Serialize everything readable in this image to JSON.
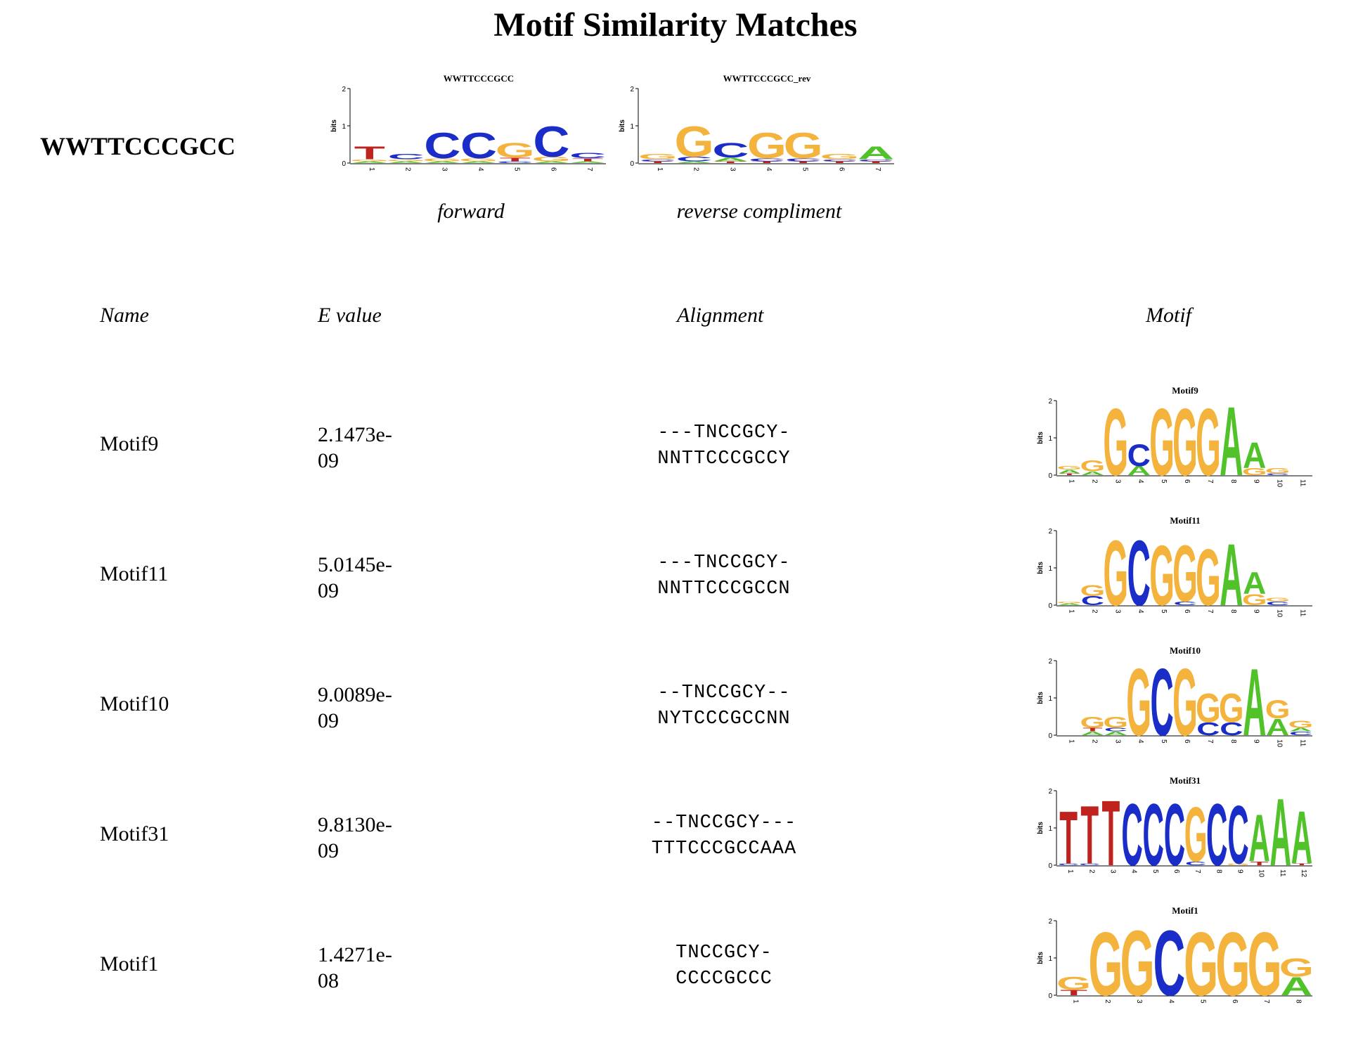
{
  "page_title": "Motif Similarity Matches",
  "query": {
    "name": "WWTTCCCGCC",
    "forward_logo": {
      "title": "WWTTCCCGCC",
      "caption": "forward",
      "ylabel": "bits",
      "yticks": [
        "0",
        "1",
        "2"
      ],
      "positions": [
        [
          [
            "A",
            0.05
          ],
          [
            "G",
            0.05
          ],
          [
            "T",
            0.35
          ]
        ],
        [
          [
            "A",
            0.05
          ],
          [
            "G",
            0.05
          ],
          [
            "C",
            0.15
          ]
        ],
        [
          [
            "A",
            0.05
          ],
          [
            "G",
            0.08
          ],
          [
            "C",
            0.7
          ]
        ],
        [
          [
            "A",
            0.05
          ],
          [
            "G",
            0.08
          ],
          [
            "C",
            0.7
          ]
        ],
        [
          [
            "C",
            0.05
          ],
          [
            "T",
            0.1
          ],
          [
            "G",
            0.4
          ]
        ],
        [
          [
            "A",
            0.05
          ],
          [
            "G",
            0.12
          ],
          [
            "C",
            0.85
          ]
        ],
        [
          [
            "A",
            0.05
          ],
          [
            "T",
            0.08
          ],
          [
            "C",
            0.15
          ]
        ]
      ]
    },
    "reverse_logo": {
      "title": "WWTTCCCGCC_rev",
      "caption": "reverse compliment",
      "ylabel": "bits",
      "yticks": [
        "0",
        "1",
        "2"
      ],
      "positions": [
        [
          [
            "T",
            0.05
          ],
          [
            "C",
            0.05
          ],
          [
            "G",
            0.15
          ]
        ],
        [
          [
            "A",
            0.05
          ],
          [
            "C",
            0.12
          ],
          [
            "G",
            0.85
          ]
        ],
        [
          [
            "T",
            0.05
          ],
          [
            "A",
            0.1
          ],
          [
            "C",
            0.4
          ]
        ],
        [
          [
            "T",
            0.05
          ],
          [
            "C",
            0.08
          ],
          [
            "G",
            0.7
          ]
        ],
        [
          [
            "T",
            0.05
          ],
          [
            "C",
            0.08
          ],
          [
            "G",
            0.7
          ]
        ],
        [
          [
            "T",
            0.05
          ],
          [
            "C",
            0.05
          ],
          [
            "G",
            0.15
          ]
        ],
        [
          [
            "T",
            0.05
          ],
          [
            "C",
            0.05
          ],
          [
            "A",
            0.35
          ]
        ]
      ]
    }
  },
  "table": {
    "headers": {
      "name": "Name",
      "evalue": "E value",
      "alignment": "Alignment",
      "motif": "Motif"
    },
    "rows": [
      {
        "name": "Motif9",
        "evalue_line1": "2.1473e-",
        "evalue_line2": "09",
        "align_top": "---TNCCGCY-",
        "align_bottom": "NNTTCCCGCCY",
        "logo": {
          "title": "Motif9",
          "ylabel": "bits",
          "yticks": [
            "0",
            "1",
            "2"
          ],
          "positions": [
            [
              [
                "T",
                0.05
              ],
              [
                "A",
                0.1
              ],
              [
                "G",
                0.1
              ]
            ],
            [
              [
                "A",
                0.1
              ],
              [
                "G",
                0.3
              ]
            ],
            [
              [
                "G",
                1.85
              ]
            ],
            [
              [
                "A",
                0.25
              ],
              [
                "C",
                0.6
              ]
            ],
            [
              [
                "G",
                1.85
              ]
            ],
            [
              [
                "G",
                1.85
              ]
            ],
            [
              [
                "G",
                1.85
              ]
            ],
            [
              [
                "A",
                1.9
              ]
            ],
            [
              [
                "G",
                0.2
              ],
              [
                "A",
                0.7
              ]
            ],
            [
              [
                "C",
                0.05
              ],
              [
                "G",
                0.15
              ]
            ],
            []
          ]
        }
      },
      {
        "name": "Motif11",
        "evalue_line1": "5.0145e-",
        "evalue_line2": "09",
        "align_top": "---TNCCGCY-",
        "align_bottom": "NNTTCCCGCCN",
        "logo": {
          "title": "Motif11",
          "ylabel": "bits",
          "yticks": [
            "0",
            "1",
            "2"
          ],
          "positions": [
            [
              [
                "A",
                0.05
              ],
              [
                "G",
                0.05
              ]
            ],
            [
              [
                "C",
                0.25
              ],
              [
                "G",
                0.3
              ]
            ],
            [
              [
                "G",
                1.8
              ]
            ],
            [
              [
                "C",
                1.8
              ]
            ],
            [
              [
                "G",
                1.65
              ]
            ],
            [
              [
                "C",
                0.1
              ],
              [
                "G",
                1.55
              ]
            ],
            [
              [
                "G",
                1.55
              ]
            ],
            [
              [
                "A",
                1.7
              ]
            ],
            [
              [
                "G",
                0.3
              ],
              [
                "A",
                0.6
              ]
            ],
            [
              [
                "C",
                0.1
              ],
              [
                "G",
                0.1
              ]
            ],
            []
          ]
        }
      },
      {
        "name": "Motif10",
        "evalue_line1": "9.0089e-",
        "evalue_line2": "09",
        "align_top": "--TNCCGCY--",
        "align_bottom": "NYTCCCGCCNN",
        "logo": {
          "title": "Motif10",
          "ylabel": "bits",
          "yticks": [
            "0",
            "1",
            "2"
          ],
          "positions": [
            [],
            [
              [
                "A",
                0.1
              ],
              [
                "T",
                0.1
              ],
              [
                "G",
                0.3
              ]
            ],
            [
              [
                "A",
                0.1
              ],
              [
                "C",
                0.1
              ],
              [
                "G",
                0.3
              ]
            ],
            [
              [
                "G",
                1.85
              ]
            ],
            [
              [
                "C",
                1.85
              ]
            ],
            [
              [
                "G",
                1.85
              ]
            ],
            [
              [
                "C",
                0.35
              ],
              [
                "G",
                0.8
              ]
            ],
            [
              [
                "C",
                0.35
              ],
              [
                "G",
                0.8
              ]
            ],
            [
              [
                "A",
                1.85
              ]
            ],
            [
              [
                "A",
                0.45
              ],
              [
                "G",
                0.5
              ]
            ],
            [
              [
                "C",
                0.1
              ],
              [
                "A",
                0.1
              ],
              [
                "G",
                0.2
              ]
            ]
          ]
        }
      },
      {
        "name": "Motif31",
        "evalue_line1": "9.8130e-",
        "evalue_line2": "09",
        "align_top": "--TNCCGCY---",
        "align_bottom": "TTTCCCGCCAAA",
        "logo": {
          "title": "Motif31",
          "ylabel": "bits",
          "yticks": [
            "0",
            "1",
            "2"
          ],
          "positions": [
            [
              [
                "C",
                0.05
              ],
              [
                "T",
                1.45
              ]
            ],
            [
              [
                "C",
                0.05
              ],
              [
                "T",
                1.6
              ]
            ],
            [
              [
                "T",
                1.8
              ]
            ],
            [
              [
                "C",
                1.7
              ]
            ],
            [
              [
                "C",
                1.7
              ]
            ],
            [
              [
                "C",
                1.7
              ]
            ],
            [
              [
                "C",
                0.1
              ],
              [
                "G",
                1.5
              ]
            ],
            [
              [
                "C",
                1.7
              ]
            ],
            [
              [
                "G",
                0.05
              ],
              [
                "C",
                1.6
              ]
            ],
            [
              [
                "T",
                0.1
              ],
              [
                "A",
                1.3
              ]
            ],
            [
              [
                "A",
                1.85
              ]
            ],
            [
              [
                "T",
                0.05
              ],
              [
                "A",
                1.45
              ]
            ]
          ]
        }
      },
      {
        "name": "Motif1",
        "evalue_line1": "1.4271e-",
        "evalue_line2": "08",
        "align_top": "TNCCGCY-",
        "align_bottom": "CCCCGCCC",
        "logo": {
          "title": "Motif1",
          "ylabel": "bits",
          "yticks": [
            "0",
            "1",
            "2"
          ],
          "positions": [
            [
              [
                "T",
                0.15
              ],
              [
                "G",
                0.35
              ]
            ],
            [
              [
                "G",
                1.75
              ]
            ],
            [
              [
                "G",
                1.8
              ]
            ],
            [
              [
                "C",
                1.8
              ]
            ],
            [
              [
                "G",
                1.75
              ]
            ],
            [
              [
                "G",
                1.75
              ]
            ],
            [
              [
                "G",
                1.75
              ]
            ],
            [
              [
                "A",
                0.5
              ],
              [
                "G",
                0.5
              ]
            ]
          ]
        }
      }
    ]
  },
  "colors": {
    "A": "#52c22b",
    "C": "#1a2dc8",
    "G": "#f3b33d",
    "T": "#c0221e"
  }
}
